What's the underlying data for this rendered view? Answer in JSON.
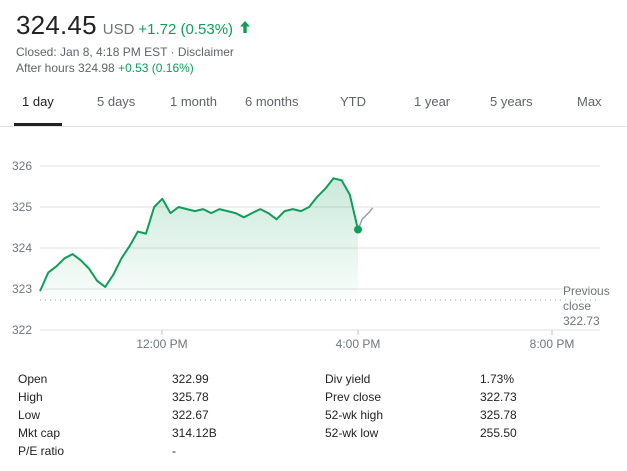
{
  "quote": {
    "price": "324.45",
    "currency": "USD",
    "change": "+1.72 (0.53%)",
    "closed_line": "Closed: Jan 8, 4:18 PM EST · Disclaimer",
    "after_hours_label": "After hours 324.98",
    "after_hours_change": "+0.53 (0.16%)"
  },
  "tabs": [
    {
      "label": "1 day",
      "active": true
    },
    {
      "label": "5 days",
      "active": false
    },
    {
      "label": "1 month",
      "active": false
    },
    {
      "label": "6 months",
      "active": false
    },
    {
      "label": "YTD",
      "active": false
    },
    {
      "label": "1 year",
      "active": false
    },
    {
      "label": "5 years",
      "active": false
    },
    {
      "label": "Max",
      "active": false
    }
  ],
  "chart_data": {
    "type": "line",
    "ylim": [
      322,
      326.5
    ],
    "x_ticks": [
      "12:00 PM",
      "4:00 PM",
      "8:00 PM"
    ],
    "y_ticks": [
      "322",
      "323",
      "324",
      "325",
      "326"
    ],
    "previous_close_label_line1": "Previous",
    "previous_close_label_line2": "close",
    "previous_close": "322.73",
    "series": [
      {
        "x": [
          "9:30",
          "9:40",
          "9:50",
          "10:00",
          "10:10",
          "10:20",
          "10:30",
          "10:40",
          "10:50",
          "11:00",
          "11:10",
          "11:20",
          "11:30",
          "11:40",
          "11:50",
          "12:00",
          "12:10",
          "12:20",
          "12:30",
          "12:40",
          "12:50",
          "13:00",
          "13:10",
          "13:20",
          "13:30",
          "13:40",
          "13:50",
          "14:00",
          "14:10",
          "14:20",
          "14:30",
          "14:40",
          "14:50",
          "15:00",
          "15:10",
          "15:20",
          "15:30",
          "15:40",
          "15:50",
          "16:00"
        ],
        "values": [
          322.95,
          323.4,
          323.55,
          323.75,
          323.85,
          323.7,
          323.5,
          323.2,
          323.05,
          323.35,
          323.75,
          324.05,
          324.4,
          324.35,
          325.0,
          325.2,
          324.85,
          325.0,
          324.95,
          324.9,
          324.95,
          324.85,
          324.95,
          324.9,
          324.85,
          324.75,
          324.85,
          324.95,
          324.85,
          324.7,
          324.9,
          324.95,
          324.9,
          325.0,
          325.25,
          325.45,
          325.7,
          325.65,
          325.3,
          324.45
        ],
        "color": "#0f9d58"
      },
      {
        "name": "After hours",
        "x": [
          "16:00",
          "16:05",
          "16:10",
          "16:15",
          "16:18"
        ],
        "values": [
          324.45,
          324.7,
          324.8,
          324.9,
          324.98
        ],
        "color": "#9aa0a6"
      }
    ]
  },
  "stats": [
    {
      "label": "Open",
      "value": "322.99",
      "label2": "Div yield",
      "value2": "1.73%"
    },
    {
      "label": "High",
      "value": "325.78",
      "label2": "Prev close",
      "value2": "322.73"
    },
    {
      "label": "Low",
      "value": "322.67",
      "label2": "52-wk high",
      "value2": "325.78"
    },
    {
      "label": "Mkt cap",
      "value": "314.12B",
      "label2": "52-wk low",
      "value2": "255.50"
    },
    {
      "label": "P/E ratio",
      "value": "-",
      "label2": "",
      "value2": ""
    }
  ],
  "colors": {
    "up": "#0f9d58",
    "muted": "#70757a",
    "grid": "#e0e0e0"
  }
}
